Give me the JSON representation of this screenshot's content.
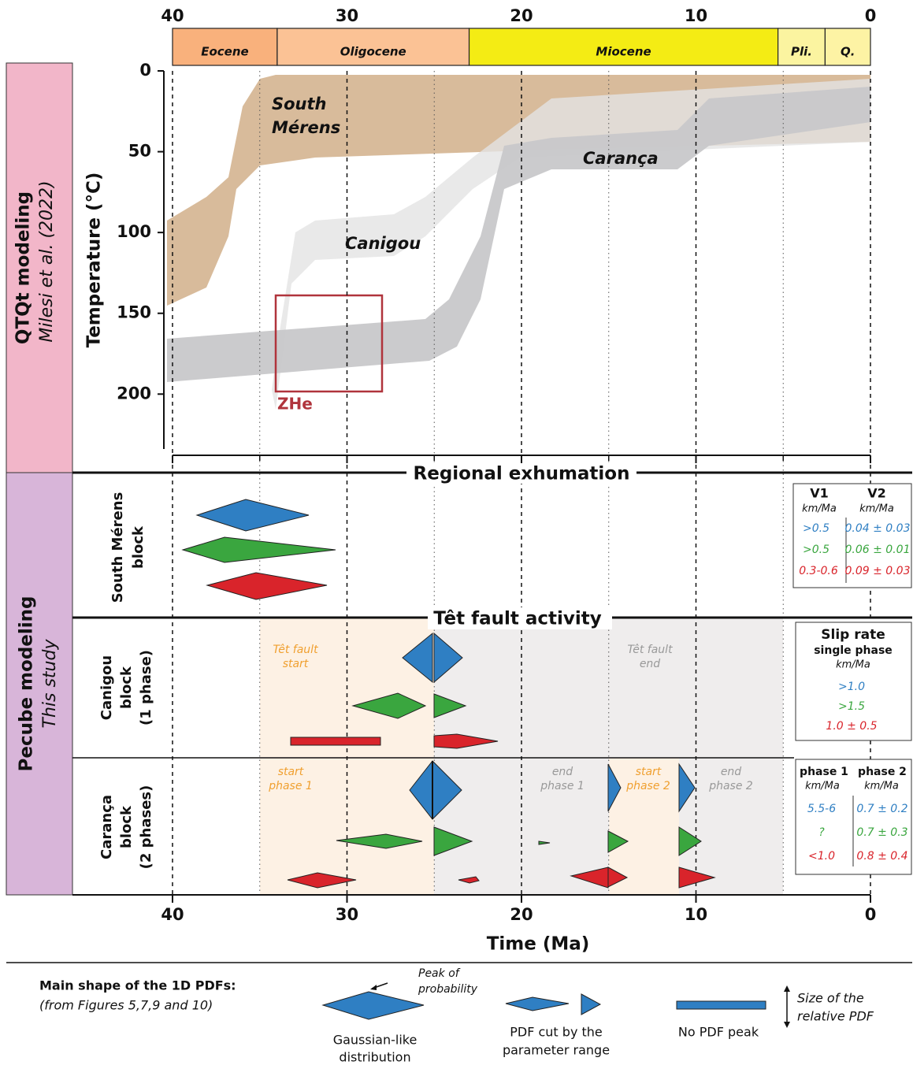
{
  "time_axis": {
    "label": "Time (Ma)",
    "ticks": [
      40,
      30,
      20,
      10,
      0
    ],
    "minor_ticks": [
      35,
      25,
      15,
      5
    ],
    "lim": [
      40,
      0
    ]
  },
  "temp_axis": {
    "label": "Temperature (°C)",
    "ticks": [
      0,
      50,
      100,
      150,
      200
    ],
    "lim": [
      0,
      233
    ]
  },
  "epochs": [
    {
      "label": "Eocene",
      "from": 40,
      "to": 34,
      "color": "#f9b17c"
    },
    {
      "label": "Oligocene",
      "from": 34,
      "to": 23,
      "color": "#fbc295"
    },
    {
      "label": "Miocene",
      "from": 23,
      "to": 5.3,
      "color": "#f4ec14"
    },
    {
      "label": "Pli.",
      "from": 5.3,
      "to": 2.6,
      "color": "#fbf4a0"
    },
    {
      "label": "Q.",
      "from": 2.6,
      "to": 0,
      "color": "#fdf3a4"
    }
  ],
  "side_labels": {
    "qtqt": "QTQt modeling",
    "qtqt_ref": "Milesi et al. (2022)",
    "pecube": "Pecube modeling",
    "pecube_ref": "This study"
  },
  "band_labels": {
    "south_1": "South",
    "south_2": "Mérens",
    "canigou": "Canigou",
    "caranca": "Carança",
    "zhe": "ZHe"
  },
  "sections": {
    "regional": "Regional exhumation",
    "tet": "Têt fault activity"
  },
  "rows": {
    "south": [
      "South Mérens",
      "block"
    ],
    "canigou": [
      "Canigou",
      "block",
      "(1 phase)"
    ],
    "caranca": [
      "Carança",
      "block",
      "(2 phases)"
    ]
  },
  "annotations": {
    "tet_start": [
      "Têt fault",
      "start"
    ],
    "tet_end": [
      "Têt fault",
      "end"
    ],
    "start1": [
      "start",
      "phase 1"
    ],
    "end1": [
      "end",
      "phase 1"
    ],
    "start2": [
      "start",
      "phase 2"
    ],
    "end2": [
      "end",
      "phase 2"
    ]
  },
  "table_v": {
    "headers": [
      "V1",
      "V2"
    ],
    "units": [
      "km/Ma",
      "km/Ma"
    ],
    "rows": [
      [
        ">0.5",
        "0.04 ± 0.03"
      ],
      [
        ">0.5",
        "0.06 ± 0.01"
      ],
      [
        "0.3-0.6",
        "0.09 ± 0.03"
      ]
    ]
  },
  "table_slip": {
    "title": "Slip rate",
    "subtitle": "single phase",
    "unit": "km/Ma",
    "rows": [
      ">1.0",
      ">1.5",
      "1.0 ± 0.5"
    ]
  },
  "table_phase": {
    "headers": [
      "phase 1",
      "phase 2"
    ],
    "units": [
      "km/Ma",
      "km/Ma"
    ],
    "rows": [
      [
        "5.5-6",
        "0.7 ± 0.2"
      ],
      [
        "?",
        "0.7 ± 0.3"
      ],
      [
        "<1.0",
        "0.8 ± 0.4"
      ]
    ]
  },
  "legend": {
    "title": "Main shape of the 1D PDFs:",
    "subtitle": "(from Figures 5,7,9 and 10)",
    "peak": [
      "Peak of",
      "probability"
    ],
    "gauss": [
      "Gaussian-like",
      "distribution"
    ],
    "cut": [
      "PDF cut by the",
      "parameter range"
    ],
    "nopeak": "No PDF peak",
    "size": [
      "Size of the",
      "relative PDF"
    ]
  }
}
